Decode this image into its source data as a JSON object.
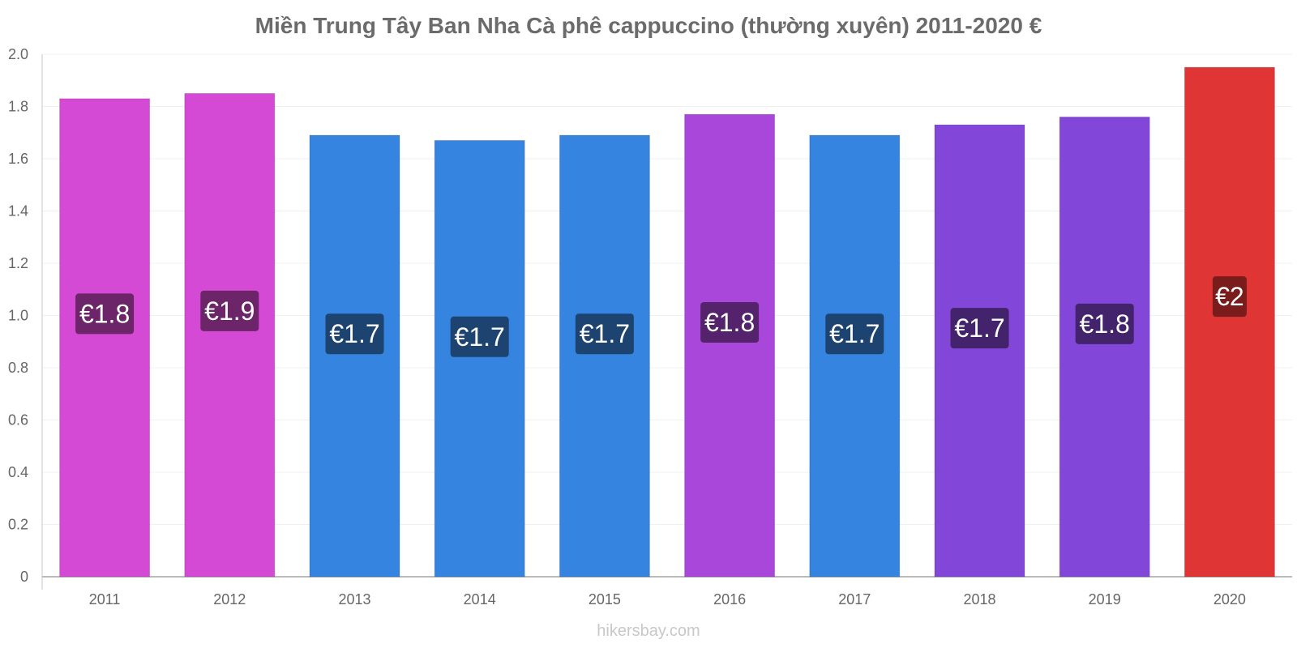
{
  "chart_data": {
    "type": "bar",
    "title": "Miền Trung Tây Ban Nha Cà phê cappuccino (thường xuyên) 2011-2020 €",
    "xlabel": "",
    "ylabel": "",
    "ylim": [
      0,
      2.0
    ],
    "yticks": [
      "0",
      "0.2",
      "0.4",
      "0.6",
      "0.8",
      "1.0",
      "1.2",
      "1.4",
      "1.6",
      "1.8",
      "2.0"
    ],
    "grid": true,
    "categories": [
      "2011",
      "2012",
      "2013",
      "2014",
      "2015",
      "2016",
      "2017",
      "2018",
      "2019",
      "2020"
    ],
    "values": [
      1.83,
      1.85,
      1.69,
      1.67,
      1.69,
      1.77,
      1.69,
      1.73,
      1.76,
      1.95
    ],
    "data_labels": [
      "€1.8",
      "€1.9",
      "€1.7",
      "€1.7",
      "€1.7",
      "€1.8",
      "€1.7",
      "€1.7",
      "€1.8",
      "€2"
    ],
    "bar_colors": [
      "#d54ad5",
      "#d54ad5",
      "#3584e0",
      "#3584e0",
      "#3584e0",
      "#a847d9",
      "#3584e0",
      "#8247d9",
      "#8247d9",
      "#e03535"
    ],
    "label_colors": [
      "#6b2568",
      "#6b2568",
      "#1d4370",
      "#1d4370",
      "#1d4370",
      "#54236c",
      "#1d4370",
      "#42236c",
      "#42236c",
      "#7a1c1c"
    ]
  },
  "watermark": "hikersbay.com"
}
